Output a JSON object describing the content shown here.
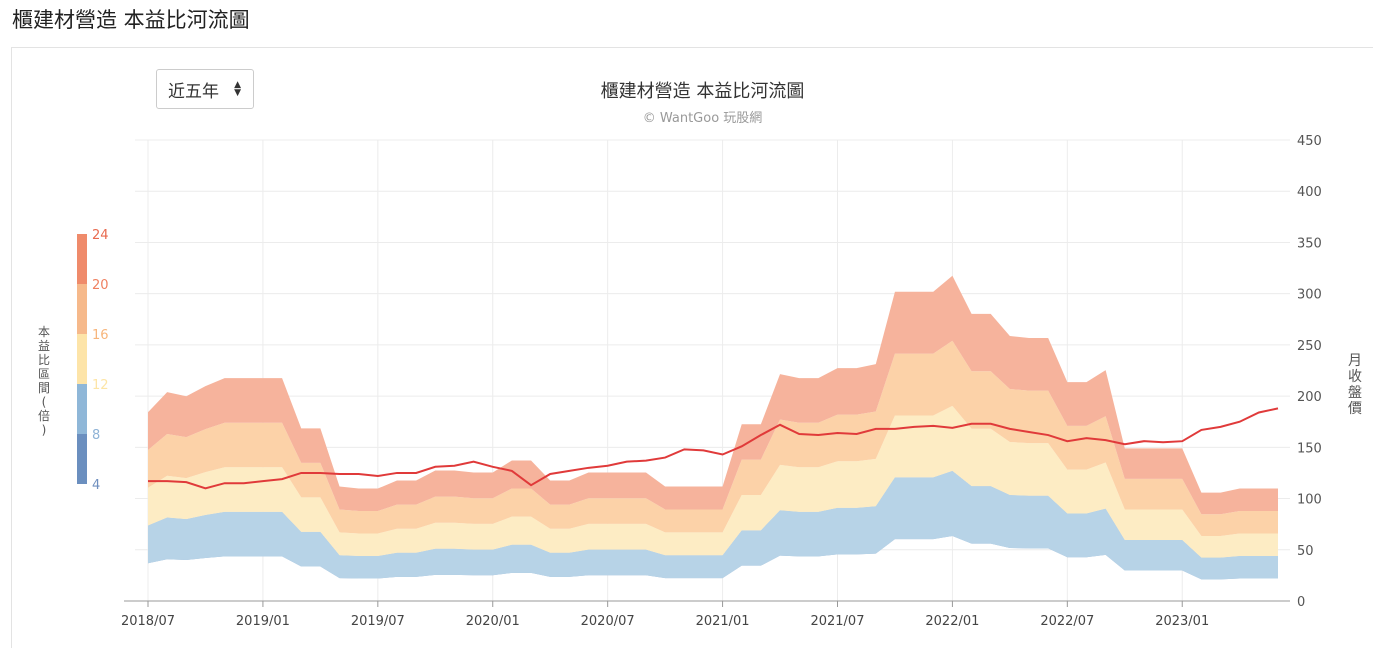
{
  "page": {
    "title": "櫃建材營造 本益比河流圖"
  },
  "range_select": {
    "value": "近五年"
  },
  "chart_data": {
    "type": "area",
    "title": "櫃建材營造 本益比河流圖",
    "subtitle": "© WantGoo 玩股網",
    "x": [
      "2018/07",
      "2018/08",
      "2018/09",
      "2018/10",
      "2018/11",
      "2018/12",
      "2019/01",
      "2019/02",
      "2019/03",
      "2019/04",
      "2019/05",
      "2019/06",
      "2019/07",
      "2019/08",
      "2019/09",
      "2019/10",
      "2019/11",
      "2019/12",
      "2020/01",
      "2020/02",
      "2020/03",
      "2020/04",
      "2020/05",
      "2020/06",
      "2020/07",
      "2020/08",
      "2020/09",
      "2020/10",
      "2020/11",
      "2020/12",
      "2021/01",
      "2021/02",
      "2021/03",
      "2021/04",
      "2021/05",
      "2021/06",
      "2021/07",
      "2021/08",
      "2021/09",
      "2021/10",
      "2021/11",
      "2021/12",
      "2022/01",
      "2022/02",
      "2022/03",
      "2022/04",
      "2022/05",
      "2022/06",
      "2022/07",
      "2022/08",
      "2022/09",
      "2022/10",
      "2022/11",
      "2022/12",
      "2023/01",
      "2023/02",
      "2023/03",
      "2023/04",
      "2023/05",
      "2023/06"
    ],
    "x_tick_labels": [
      "2018/07",
      "2019/01",
      "2019/07",
      "2020/01",
      "2020/07",
      "2021/01",
      "2021/07",
      "2022/01",
      "2022/07",
      "2023/01"
    ],
    "eps_basis": [
      9.4,
      10.4,
      10.2,
      10.7,
      11.1,
      11.1,
      11.1,
      11.1,
      8.6,
      8.6,
      5.7,
      5.6,
      5.6,
      6.0,
      6.0,
      6.5,
      6.5,
      6.4,
      6.4,
      7.0,
      7.0,
      6.0,
      6.0,
      6.4,
      6.4,
      6.4,
      6.4,
      5.7,
      5.7,
      5.7,
      5.7,
      8.8,
      8.8,
      11.3,
      11.1,
      11.1,
      11.6,
      11.6,
      11.8,
      15.4,
      15.4,
      15.4,
      16.2,
      14.3,
      14.3,
      13.2,
      13.1,
      13.1,
      10.9,
      10.9,
      11.5,
      7.6,
      7.6,
      7.6,
      7.6,
      5.4,
      5.4,
      5.6,
      5.6,
      5.6
    ],
    "series": [
      {
        "name": "4",
        "color": "#6f8fbf",
        "multiplier": 4
      },
      {
        "name": "8",
        "color": "#8fb3d6",
        "multiplier": 8
      },
      {
        "name": "12",
        "color": "#fde5a6",
        "multiplier": 12
      },
      {
        "name": "16",
        "color": "#f7b57b",
        "multiplier": 16
      },
      {
        "name": "20",
        "color": "#ef8060",
        "multiplier": 20
      },
      {
        "name": "24",
        "color": "#e86a4f",
        "multiplier": 24
      }
    ],
    "price_series": {
      "name": "月收盤價",
      "color": "#e03a3a",
      "values": [
        117,
        117,
        116,
        110,
        115,
        115,
        117,
        119,
        125,
        125,
        124,
        124,
        122,
        125,
        125,
        131,
        132,
        136,
        131,
        127,
        113,
        124,
        127,
        130,
        132,
        136,
        137,
        140,
        148,
        147,
        143,
        151,
        162,
        172,
        163,
        162,
        164,
        163,
        168,
        168,
        170,
        171,
        169,
        173,
        173,
        168,
        165,
        162,
        156,
        159,
        157,
        153,
        156,
        155,
        156,
        167,
        170,
        175,
        184,
        188
      ]
    },
    "legend": {
      "label": "本益比區間(倍)",
      "levels": [
        "24",
        "20",
        "16",
        "12",
        "8",
        "4"
      ],
      "colors": [
        "#e86a4f",
        "#ef8060",
        "#f7b57b",
        "#fde5a6",
        "#8fb3d6",
        "#6f8fbf"
      ]
    },
    "y_right": {
      "label": "月收盤價",
      "ticks": [
        "450",
        "400",
        "350",
        "300",
        "250",
        "200",
        "150",
        "100",
        "50",
        "0"
      ],
      "range": [
        0,
        450
      ]
    },
    "grid": true
  }
}
